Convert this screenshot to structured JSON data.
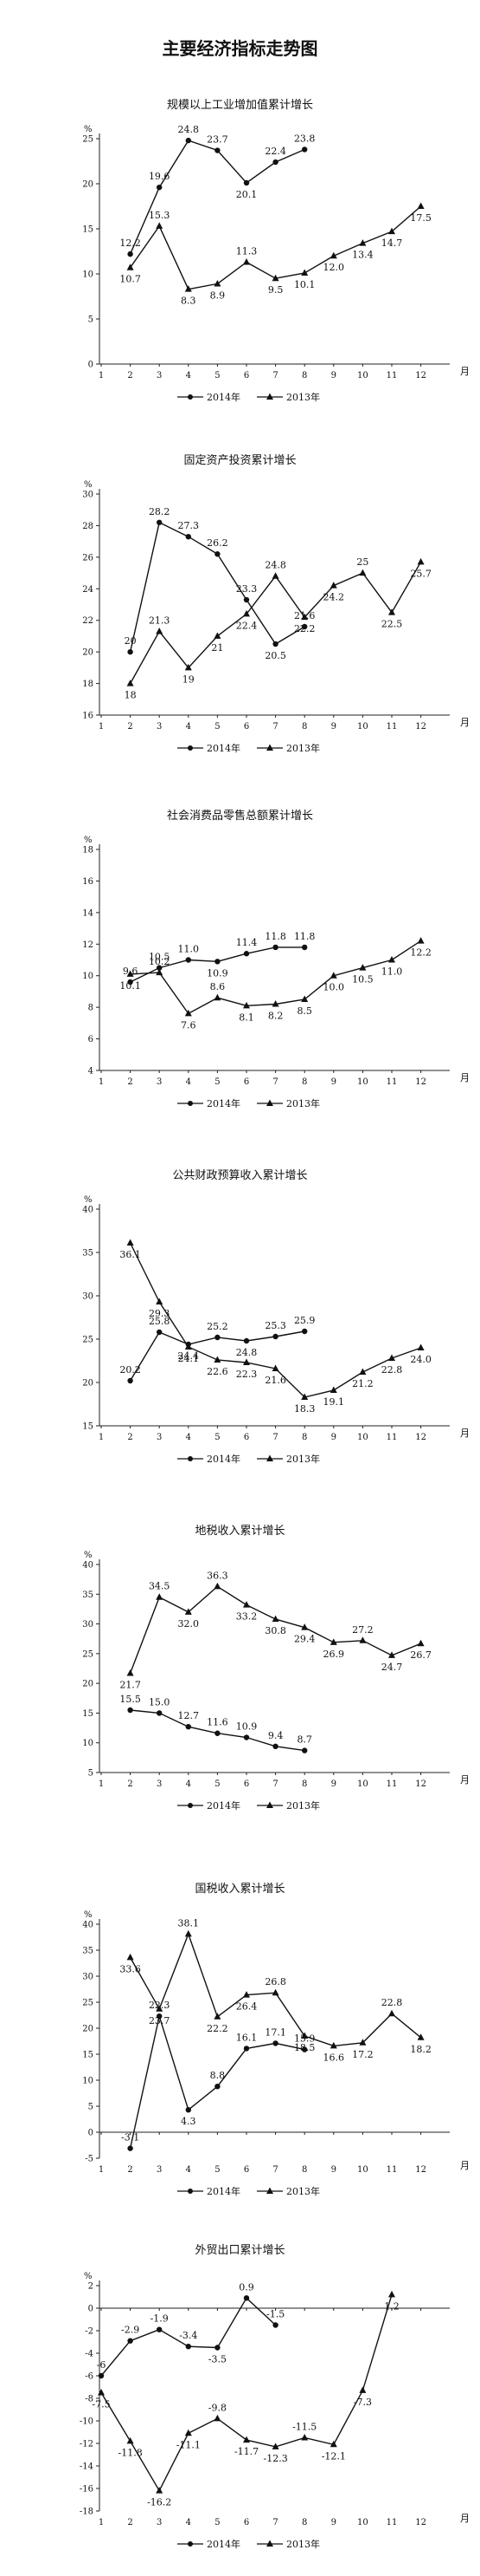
{
  "page_title": "主要经济指标走势图",
  "chart_data": [
    {
      "type": "line",
      "title": "规模以上工业增加值累计增长",
      "unit_label": "%",
      "x_unit_label": "月",
      "x": [
        1,
        2,
        3,
        4,
        5,
        6,
        7,
        8,
        9,
        10,
        11,
        12
      ],
      "ylim": [
        0,
        25
      ],
      "yticks": [
        0,
        5,
        10,
        15,
        20,
        25
      ],
      "series": [
        {
          "name": "2014年",
          "marker": "circle",
          "points": [
            [
              2,
              12.2
            ],
            [
              3,
              19.6
            ],
            [
              4,
              24.8
            ],
            [
              5,
              23.7
            ],
            [
              6,
              20.1
            ],
            [
              7,
              22.4
            ],
            [
              8,
              23.8
            ]
          ],
          "labels": [
            "12.2",
            "19.6",
            "24.8",
            "23.7",
            "20.1",
            "22.4",
            "23.8"
          ]
        },
        {
          "name": "2013年",
          "marker": "triangle",
          "points": [
            [
              2,
              10.7
            ],
            [
              3,
              15.3
            ],
            [
              4,
              8.3
            ],
            [
              5,
              8.9
            ],
            [
              6,
              11.3
            ],
            [
              7,
              9.5
            ],
            [
              8,
              10.1
            ],
            [
              9,
              12.0
            ],
            [
              10,
              13.4
            ],
            [
              11,
              14.7
            ],
            [
              12,
              17.5
            ]
          ],
          "labels": [
            "10.7",
            "15.3",
            "8.3",
            "8.9",
            "11.3",
            "9.5",
            "10.1",
            "12.0",
            "13.4",
            "14.7",
            "17.5"
          ]
        }
      ]
    },
    {
      "type": "line",
      "title": "固定资产投资累计增长",
      "unit_label": "%",
      "x_unit_label": "月",
      "x": [
        1,
        2,
        3,
        4,
        5,
        6,
        7,
        8,
        9,
        10,
        11,
        12
      ],
      "ylim": [
        16,
        30
      ],
      "yticks": [
        16,
        18,
        20,
        22,
        24,
        26,
        28,
        30
      ],
      "series": [
        {
          "name": "2014年",
          "marker": "circle",
          "points": [
            [
              2,
              20
            ],
            [
              3,
              28.2
            ],
            [
              4,
              27.3
            ],
            [
              5,
              26.2
            ],
            [
              6,
              23.3
            ],
            [
              7,
              20.5
            ],
            [
              8,
              21.6
            ]
          ],
          "labels": [
            "20",
            "28.2",
            "27.3",
            "26.2",
            "23.3",
            "20.5",
            "21.6"
          ]
        },
        {
          "name": "2013年",
          "marker": "triangle",
          "points": [
            [
              2,
              18
            ],
            [
              3,
              21.3
            ],
            [
              4,
              19
            ],
            [
              5,
              21
            ],
            [
              6,
              22.4
            ],
            [
              7,
              24.8
            ],
            [
              8,
              22.2
            ],
            [
              9,
              24.2
            ],
            [
              10,
              25
            ],
            [
              11,
              22.5
            ],
            [
              12,
              25.7
            ]
          ],
          "labels": [
            "18",
            "21.3",
            "19",
            "21",
            "22.4",
            "24.8",
            "22.2",
            "24.2",
            "25",
            "22.5",
            "25.7"
          ]
        }
      ]
    },
    {
      "type": "line",
      "title": "社会消费品零售总额累计增长",
      "unit_label": "%",
      "x_unit_label": "月",
      "x": [
        1,
        2,
        3,
        4,
        5,
        6,
        7,
        8,
        9,
        10,
        11,
        12
      ],
      "ylim": [
        4,
        18
      ],
      "yticks": [
        4,
        6,
        8,
        10,
        12,
        14,
        16,
        18
      ],
      "series": [
        {
          "name": "2014年",
          "marker": "circle",
          "points": [
            [
              2,
              9.6
            ],
            [
              3,
              10.5
            ],
            [
              4,
              11.0
            ],
            [
              5,
              10.9
            ],
            [
              6,
              11.4
            ],
            [
              7,
              11.8
            ],
            [
              8,
              11.8
            ]
          ],
          "labels": [
            "9.6",
            "10.5",
            "11.0",
            "10.9",
            "11.4",
            "11.8",
            "11.8"
          ]
        },
        {
          "name": "2013年",
          "marker": "triangle",
          "points": [
            [
              2,
              10.1
            ],
            [
              3,
              10.2
            ],
            [
              4,
              7.6
            ],
            [
              5,
              8.6
            ],
            [
              6,
              8.1
            ],
            [
              7,
              8.2
            ],
            [
              8,
              8.5
            ],
            [
              9,
              10.0
            ],
            [
              10,
              10.5
            ],
            [
              11,
              11.0
            ],
            [
              12,
              12.2
            ]
          ],
          "labels": [
            "10.1",
            "10.2",
            "7.6",
            "8.6",
            "8.1",
            "8.2",
            "8.5",
            "10.0",
            "10.5",
            "11.0",
            "12.2"
          ]
        }
      ]
    },
    {
      "type": "line",
      "title": "公共财政预算收入累计增长",
      "unit_label": "%",
      "x_unit_label": "月",
      "x": [
        1,
        2,
        3,
        4,
        5,
        6,
        7,
        8,
        9,
        10,
        11,
        12
      ],
      "ylim": [
        15,
        40
      ],
      "yticks": [
        15,
        20,
        25,
        30,
        35,
        40
      ],
      "series": [
        {
          "name": "2014年",
          "marker": "circle",
          "points": [
            [
              2,
              20.2
            ],
            [
              3,
              25.8
            ],
            [
              4,
              24.4
            ],
            [
              5,
              25.2
            ],
            [
              6,
              24.8
            ],
            [
              7,
              25.3
            ],
            [
              8,
              25.9
            ]
          ],
          "labels": [
            "20.2",
            "25.8",
            "24.4",
            "25.2",
            "24.8",
            "25.3",
            "25.9"
          ]
        },
        {
          "name": "2013年",
          "marker": "triangle",
          "points": [
            [
              2,
              36.1
            ],
            [
              3,
              29.3
            ],
            [
              4,
              24.1
            ],
            [
              5,
              22.6
            ],
            [
              6,
              22.3
            ],
            [
              7,
              21.6
            ],
            [
              8,
              18.3
            ],
            [
              9,
              19.1
            ],
            [
              10,
              21.2
            ],
            [
              11,
              22.8
            ],
            [
              12,
              24.0
            ]
          ],
          "labels": [
            "36.1",
            "29.3",
            "24.1",
            "22.6",
            "22.3",
            "21.6",
            "18.3",
            "19.1",
            "21.2",
            "22.8",
            "24.0"
          ]
        }
      ]
    },
    {
      "type": "line",
      "title": "地税收入累计增长",
      "unit_label": "%",
      "x_unit_label": "月",
      "x": [
        1,
        2,
        3,
        4,
        5,
        6,
        7,
        8,
        9,
        10,
        11,
        12
      ],
      "ylim": [
        5,
        40
      ],
      "yticks": [
        5,
        10,
        15,
        20,
        25,
        30,
        35,
        40
      ],
      "series": [
        {
          "name": "2014年",
          "marker": "circle",
          "points": [
            [
              2,
              15.5
            ],
            [
              3,
              15.0
            ],
            [
              4,
              12.7
            ],
            [
              5,
              11.6
            ],
            [
              6,
              10.9
            ],
            [
              7,
              9.4
            ],
            [
              8,
              8.7
            ]
          ],
          "labels": [
            "15.5",
            "15.0",
            "12.7",
            "11.6",
            "10.9",
            "9.4",
            "8.7"
          ]
        },
        {
          "name": "2013年",
          "marker": "triangle",
          "points": [
            [
              2,
              21.7
            ],
            [
              3,
              34.5
            ],
            [
              4,
              32.0
            ],
            [
              5,
              36.3
            ],
            [
              6,
              33.2
            ],
            [
              7,
              30.8
            ],
            [
              8,
              29.4
            ],
            [
              9,
              26.9
            ],
            [
              10,
              27.2
            ],
            [
              11,
              24.7
            ],
            [
              12,
              26.7
            ]
          ],
          "labels": [
            "21.7",
            "34.5",
            "32.0",
            "36.3",
            "33.2",
            "30.8",
            "29.4",
            "26.9",
            "27.2",
            "24.7",
            "26.7"
          ]
        }
      ]
    },
    {
      "type": "line",
      "title": "国税收入累计增长",
      "unit_label": "%",
      "x_unit_label": "月",
      "x": [
        1,
        2,
        3,
        4,
        5,
        6,
        7,
        8,
        9,
        10,
        11,
        12
      ],
      "ylim": [
        -5,
        40
      ],
      "yticks": [
        -5,
        0,
        5,
        10,
        15,
        20,
        25,
        30,
        35,
        40
      ],
      "series": [
        {
          "name": "2014年",
          "marker": "circle",
          "points": [
            [
              2,
              -3.1
            ],
            [
              3,
              22.3
            ],
            [
              4,
              4.3
            ],
            [
              5,
              8.8
            ],
            [
              6,
              16.1
            ],
            [
              7,
              17.1
            ],
            [
              8,
              15.9
            ]
          ],
          "labels": [
            "-3.1",
            "22.3",
            "4.3",
            "8.8",
            "16.1",
            "17.1",
            "15.9"
          ]
        },
        {
          "name": "2013年",
          "marker": "triangle",
          "points": [
            [
              2,
              33.6
            ],
            [
              3,
              23.7
            ],
            [
              4,
              38.1
            ],
            [
              5,
              22.2
            ],
            [
              6,
              26.4
            ],
            [
              7,
              26.8
            ],
            [
              8,
              18.5
            ],
            [
              9,
              16.6
            ],
            [
              10,
              17.2
            ],
            [
              11,
              22.8
            ],
            [
              12,
              18.2
            ]
          ],
          "labels": [
            "33.6",
            "23.7",
            "38.1",
            "22.2",
            "26.4",
            "26.8",
            "18.5",
            "16.6",
            "17.2",
            "22.8",
            "18.2"
          ]
        }
      ]
    },
    {
      "type": "line",
      "title": "外贸出口累计增长",
      "unit_label": "%",
      "x_unit_label": "月",
      "x": [
        1,
        2,
        3,
        4,
        5,
        6,
        7,
        8,
        9,
        10,
        11,
        12
      ],
      "ylim": [
        -18,
        2
      ],
      "yticks": [
        -18,
        -16,
        -14,
        -12,
        -10,
        -8,
        -6,
        -4,
        -2,
        0,
        2
      ],
      "series": [
        {
          "name": "2014年",
          "marker": "circle",
          "points": [
            [
              1,
              -6
            ],
            [
              2,
              -2.9
            ],
            [
              3,
              -1.9
            ],
            [
              4,
              -3.4
            ],
            [
              5,
              -3.5
            ],
            [
              6,
              0.9
            ],
            [
              7,
              -1.5
            ]
          ],
          "labels": [
            "-6",
            "-2.9",
            "-1.9",
            "-3.4",
            "-3.5",
            "0.9",
            "-1.5"
          ]
        },
        {
          "name": "2013年",
          "marker": "triangle",
          "points": [
            [
              1,
              -7.5
            ],
            [
              2,
              -11.8
            ],
            [
              3,
              -16.2
            ],
            [
              4,
              -11.1
            ],
            [
              5,
              -9.8
            ],
            [
              6,
              -11.7
            ],
            [
              7,
              -12.3
            ],
            [
              8,
              -11.5
            ],
            [
              9,
              -12.1
            ],
            [
              10,
              -7.3
            ],
            [
              11,
              1.2
            ]
          ],
          "labels": [
            "-7.5",
            "-11.8",
            "-16.2",
            "-11.1",
            "-9.8",
            "-11.7",
            "-12.3",
            "-11.5",
            "-12.1",
            "-7.3",
            "1.2"
          ]
        }
      ]
    }
  ]
}
